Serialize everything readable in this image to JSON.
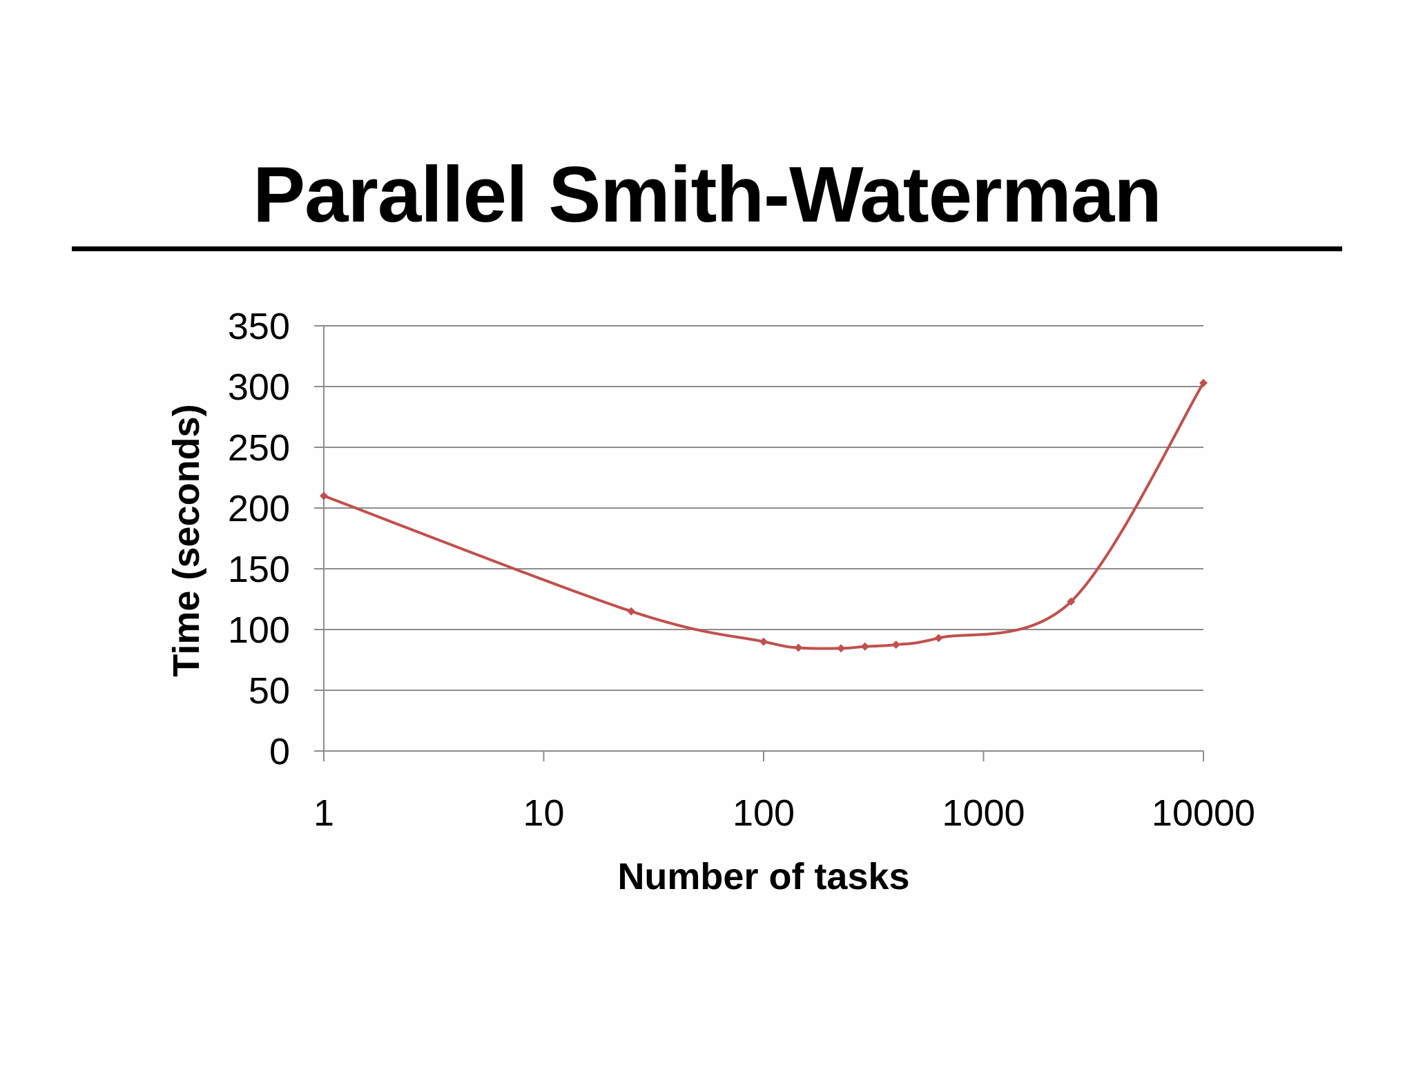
{
  "slide": {
    "title": "Parallel Smith-Waterman"
  },
  "chart_data": {
    "type": "line",
    "xlabel": "Number of tasks",
    "ylabel": "Time (seconds)",
    "x_scale": "log",
    "xlim": [
      1,
      10000
    ],
    "ylim": [
      0,
      350
    ],
    "x_ticks": [
      "1",
      "10",
      "100",
      "1000",
      "10000"
    ],
    "y_ticks": [
      "0",
      "50",
      "100",
      "150",
      "200",
      "250",
      "300",
      "350"
    ],
    "grid": "horizontal",
    "legend": "none",
    "series": [
      {
        "color": "#c0504d",
        "marker": "diamond",
        "smooth": true,
        "x": [
          1,
          25,
          100,
          144,
          225,
          289,
          400,
          625,
          2500,
          10000
        ],
        "y": [
          210,
          115,
          90,
          85,
          84.5,
          86,
          87.5,
          93,
          123,
          303
        ]
      }
    ]
  }
}
